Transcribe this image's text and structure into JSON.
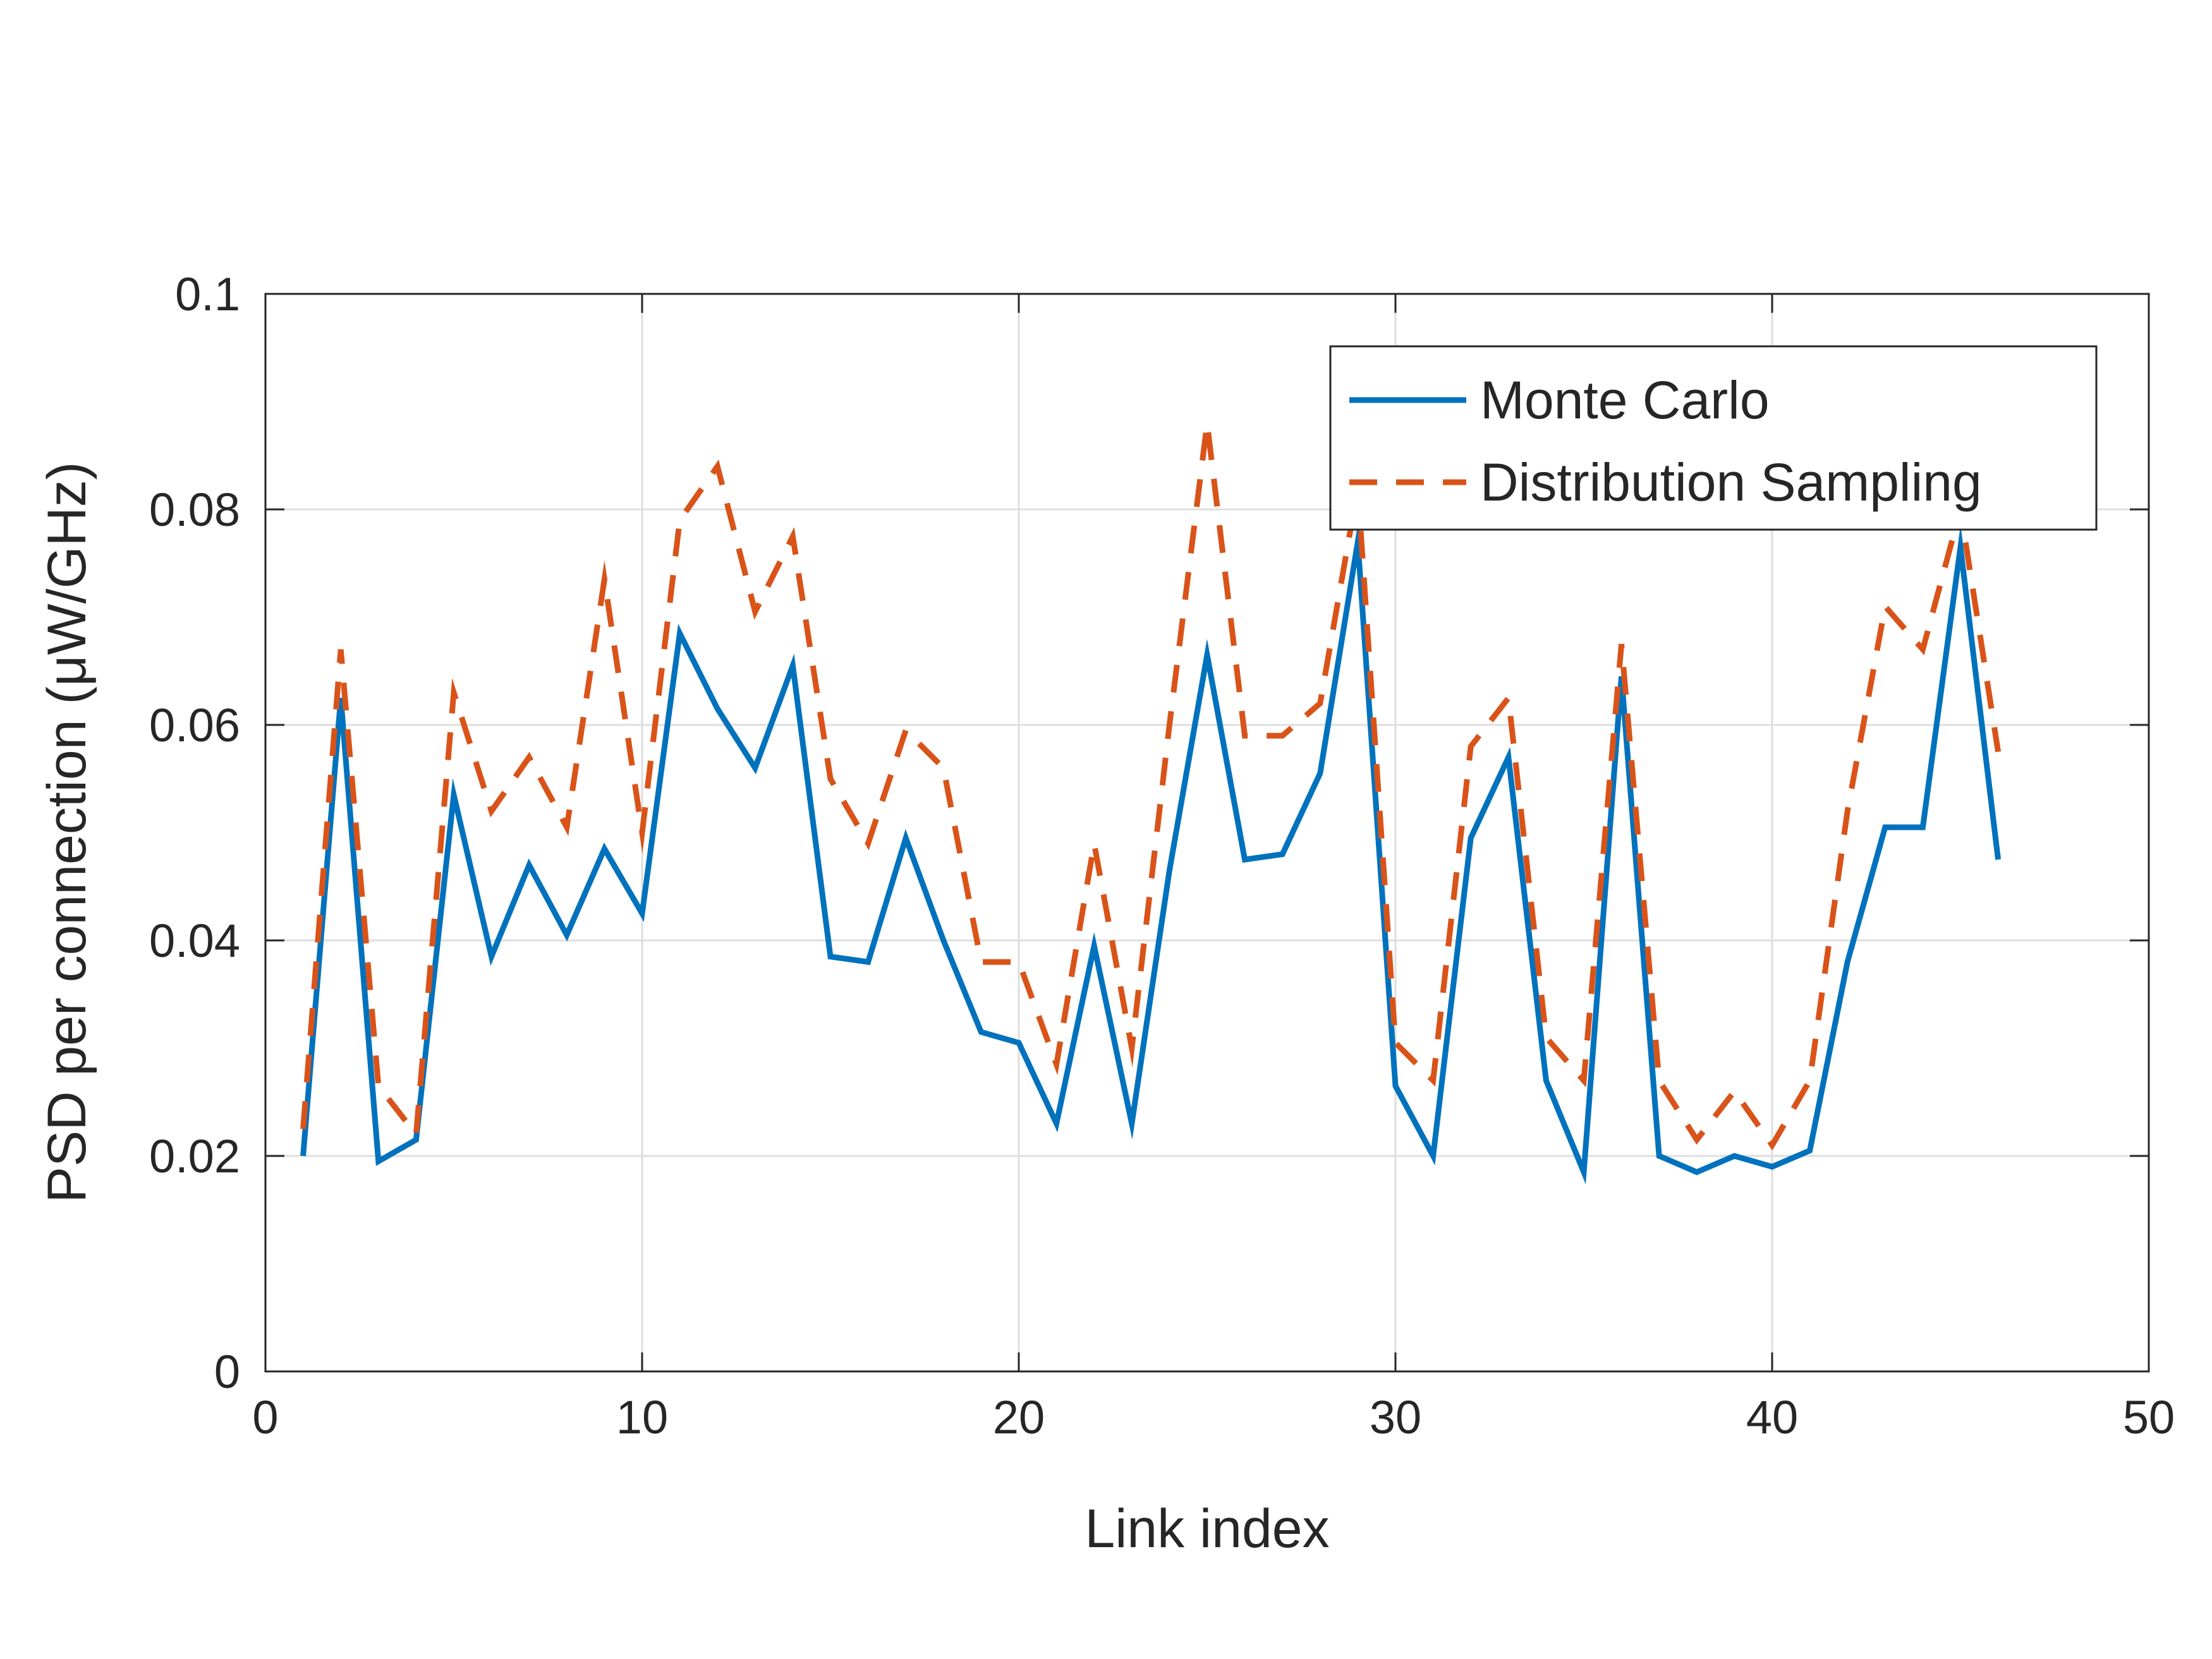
{
  "chart_data": {
    "type": "line",
    "title": "",
    "xlabel": "Link index",
    "ylabel": "PSD per connection (μW/GHz)",
    "xlim": [
      0,
      50
    ],
    "ylim": [
      0,
      0.1
    ],
    "xticks": [
      0,
      10,
      20,
      30,
      40,
      50
    ],
    "xtick_labels": [
      "0",
      "10",
      "20",
      "30",
      "40",
      "50"
    ],
    "yticks": [
      0,
      0.02,
      0.04,
      0.06,
      0.08,
      0.1
    ],
    "ytick_labels": [
      "0",
      "0.02",
      "0.04",
      "0.06",
      "0.08",
      "0.1"
    ],
    "grid": true,
    "legend_position": "top-right",
    "x": [
      1,
      2,
      3,
      4,
      5,
      6,
      7,
      8,
      9,
      10,
      11,
      12,
      13,
      14,
      15,
      16,
      17,
      18,
      19,
      20,
      21,
      22,
      23,
      24,
      25,
      26,
      27,
      28,
      29,
      30,
      31,
      32,
      33,
      34,
      35,
      36,
      37,
      38,
      39,
      40,
      41,
      42,
      43,
      44,
      45,
      46
    ],
    "series": [
      {
        "name": "Monte Carlo",
        "color": "#0072BD",
        "style": "solid",
        "values": [
          0.02,
          0.0625,
          0.0195,
          0.0215,
          0.0535,
          0.0385,
          0.047,
          0.0405,
          0.0485,
          0.0425,
          0.0685,
          0.0615,
          0.056,
          0.0655,
          0.0385,
          0.038,
          0.0495,
          0.04,
          0.0315,
          0.0305,
          0.023,
          0.0395,
          0.023,
          0.0465,
          0.0665,
          0.0475,
          0.048,
          0.0555,
          0.077,
          0.0265,
          0.02,
          0.0495,
          0.057,
          0.027,
          0.0185,
          0.0645,
          0.02,
          0.0185,
          0.02,
          0.019,
          0.0205,
          0.038,
          0.0505,
          0.0505,
          0.0765,
          0.0475
        ]
      },
      {
        "name": "Distribution Sampling",
        "color": "#D95319",
        "style": "dashed",
        "values": [
          0.0225,
          0.067,
          0.0265,
          0.022,
          0.063,
          0.052,
          0.057,
          0.0505,
          0.0735,
          0.05,
          0.079,
          0.084,
          0.0705,
          0.0775,
          0.055,
          0.049,
          0.0595,
          0.056,
          0.038,
          0.038,
          0.0285,
          0.049,
          0.03,
          0.06,
          0.088,
          0.059,
          0.059,
          0.062,
          0.082,
          0.0305,
          0.027,
          0.058,
          0.0625,
          0.031,
          0.027,
          0.0675,
          0.027,
          0.0215,
          0.026,
          0.021,
          0.027,
          0.052,
          0.071,
          0.067,
          0.08,
          0.0575
        ]
      }
    ]
  }
}
